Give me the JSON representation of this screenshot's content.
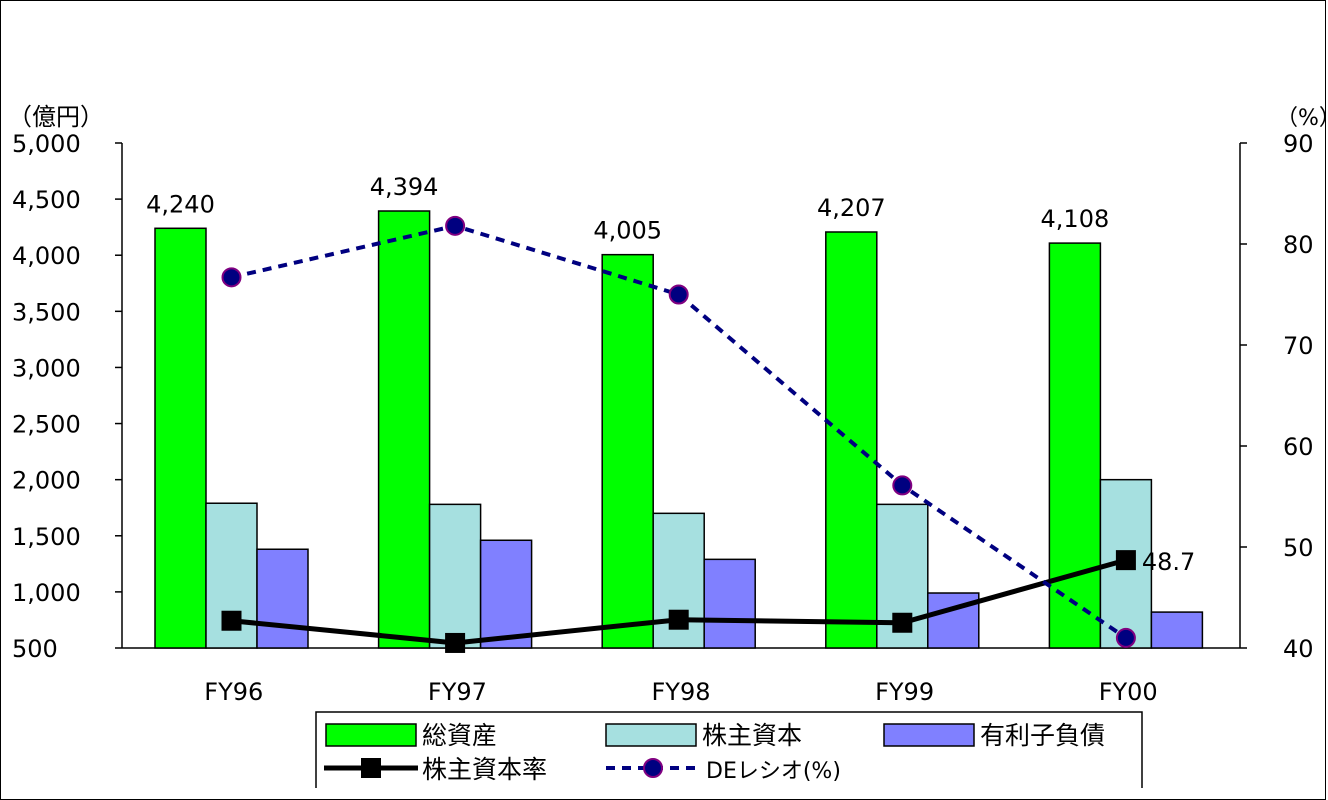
{
  "chart_data": {
    "type": "bar",
    "categories": [
      "FY96",
      "FY97",
      "FY98",
      "FY99",
      "FY00"
    ],
    "left_axis": {
      "label": "（億円）",
      "ylim": [
        500,
        5000
      ],
      "ticks": [
        "5,000",
        "4,500",
        "4,000",
        "3,500",
        "3,000",
        "2,500",
        "2,000",
        "1,500",
        "1,000",
        "500"
      ]
    },
    "right_axis": {
      "label": "（%）",
      "ylim": [
        40,
        90
      ],
      "ticks": [
        "90",
        "80",
        "70",
        "60",
        "50",
        "40"
      ]
    },
    "series": [
      {
        "name": "総資産",
        "type": "bar",
        "axis": "left",
        "color": "#00ff00",
        "values": [
          4240,
          4394,
          4005,
          4207,
          4108
        ],
        "labels": [
          "4,240",
          "4,394",
          "4,005",
          "4,207",
          "4,108"
        ]
      },
      {
        "name": "株主資本",
        "type": "bar",
        "axis": "left",
        "color": "#a6e0e0",
        "values": [
          1790,
          1780,
          1700,
          1780,
          2000
        ]
      },
      {
        "name": "有利子負債",
        "type": "bar",
        "axis": "left",
        "color": "#8080ff",
        "values": [
          1380,
          1460,
          1290,
          990,
          820
        ]
      },
      {
        "name": "株主資本率",
        "type": "line",
        "axis": "right",
        "color": "#000000",
        "values": [
          42.7,
          40.5,
          42.8,
          42.5,
          48.7
        ],
        "end_label": "48.7"
      },
      {
        "name": "DEレシオ(%)",
        "type": "line",
        "axis": "right",
        "color": "#000080",
        "marker_color": "#800080",
        "values": [
          76.7,
          81.8,
          75.0,
          56.1,
          41.0
        ]
      }
    ],
    "legend": {
      "placement": "bottom",
      "items": [
        "総資産",
        "株主資本",
        "有利子負債",
        "株主資本率",
        "DEレシオ(%)"
      ]
    }
  }
}
